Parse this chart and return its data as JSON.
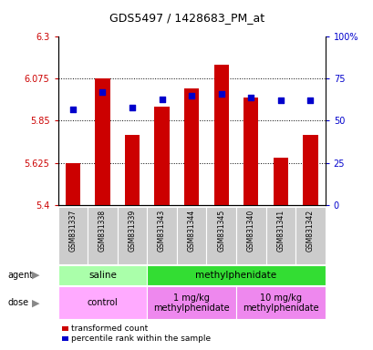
{
  "title": "GDS5497 / 1428683_PM_at",
  "samples": [
    "GSM831337",
    "GSM831338",
    "GSM831339",
    "GSM831343",
    "GSM831344",
    "GSM831345",
    "GSM831340",
    "GSM831341",
    "GSM831342"
  ],
  "bar_values": [
    5.625,
    6.075,
    5.775,
    5.925,
    6.025,
    6.15,
    5.975,
    5.65,
    5.775
  ],
  "percentile_values": [
    57,
    67,
    58,
    63,
    65,
    66,
    64,
    62,
    62
  ],
  "bar_base": 5.4,
  "ylim_left": [
    5.4,
    6.3
  ],
  "ylim_right": [
    0,
    100
  ],
  "yticks_left": [
    5.4,
    5.625,
    5.85,
    6.075,
    6.3
  ],
  "yticks_right": [
    0,
    25,
    50,
    75,
    100
  ],
  "ytick_labels_left": [
    "5.4",
    "5.625",
    "5.85",
    "6.075",
    "6.3"
  ],
  "ytick_labels_right": [
    "0",
    "25",
    "50",
    "75",
    "100%"
  ],
  "bar_color": "#cc0000",
  "dot_color": "#0000cc",
  "agent_row": [
    {
      "label": "saline",
      "start": 0,
      "end": 3,
      "color": "#aaffaa"
    },
    {
      "label": "methylphenidate",
      "start": 3,
      "end": 9,
      "color": "#33dd33"
    }
  ],
  "dose_row": [
    {
      "label": "control",
      "start": 0,
      "end": 3,
      "color": "#ffaaff"
    },
    {
      "label": "1 mg/kg\nmethylphenidate",
      "start": 3,
      "end": 6,
      "color": "#ee88ee"
    },
    {
      "label": "10 mg/kg\nmethylphenidate",
      "start": 6,
      "end": 9,
      "color": "#ee88ee"
    }
  ],
  "legend_items": [
    {
      "color": "#cc0000",
      "label": "transformed count"
    },
    {
      "color": "#0000cc",
      "label": "percentile rank within the sample"
    }
  ],
  "left_label_color": "#cc0000",
  "right_label_color": "#0000cc",
  "bg_color": "#ffffff",
  "bar_width": 0.5,
  "dot_size": 25,
  "tick_area_bg": "#cccccc",
  "tick_area_edge": "#aaaaaa"
}
